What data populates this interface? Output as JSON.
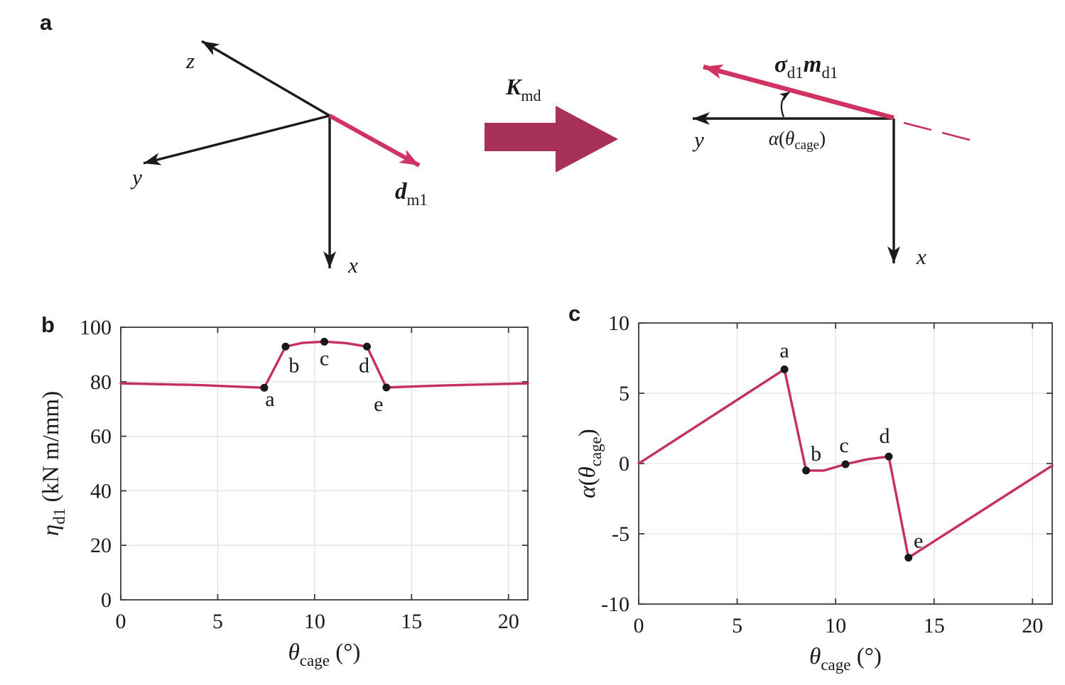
{
  "figure": {
    "panel_a_label": "a",
    "panel_b_label": "b",
    "panel_c_label": "c"
  },
  "diagram_left": {
    "axis_z": "z",
    "axis_y": "y",
    "axis_x": "x",
    "vector_main": "d",
    "vector_sub": "m1"
  },
  "transform_arrow": {
    "main": "K",
    "sub": "md"
  },
  "diagram_right": {
    "axis_y": "y",
    "axis_x": "x",
    "sigma": "σ",
    "sigma_sub": "d1",
    "m": "m",
    "m_sub": "d1",
    "alpha": "α",
    "alpha_open": "(",
    "theta": "θ",
    "theta_sub": "cage",
    "alpha_close": ")"
  },
  "colors": {
    "accent_line": "#C43060",
    "vector_arrow": "#CE3362",
    "block_arrow": "#A73157",
    "axis_black": "#1A1A1A",
    "spine": "#3C3C3C",
    "grid": "#E2E2E2",
    "text": "#1A1A1A"
  },
  "chart_data": [
    {
      "id": "b",
      "type": "line",
      "title": "",
      "xlabel_parts": [
        {
          "t": "θ",
          "italic": true
        },
        {
          "t": "cage",
          "sub": true
        },
        {
          "t": " (°)"
        }
      ],
      "ylabel_parts": [
        {
          "t": "η",
          "italic": true
        },
        {
          "t": "d1",
          "sub": true
        },
        {
          "t": " (kN m/mm)"
        }
      ],
      "xlim": [
        0,
        21
      ],
      "ylim": [
        0,
        100
      ],
      "xticks": [
        0,
        5,
        10,
        15,
        20
      ],
      "yticks": [
        0,
        20,
        40,
        60,
        80,
        100
      ],
      "grid": true,
      "legend": "none",
      "line_color": "#C43060",
      "series": [
        {
          "name": "eta_d1",
          "x": [
            0,
            2,
            4,
            6,
            7.4,
            8.5,
            9.4,
            10.5,
            11.6,
            12.7,
            13.7,
            16,
            18,
            21
          ],
          "y": [
            79.4,
            79.1,
            78.8,
            78.2,
            77.8,
            92.9,
            94.3,
            94.7,
            94.2,
            92.9,
            77.9,
            78.5,
            78.9,
            79.4
          ]
        }
      ],
      "labeled_points": [
        {
          "label": "a",
          "x": 7.4,
          "y": 77.8,
          "label_offset": [
            8,
            26
          ]
        },
        {
          "label": "b",
          "x": 8.5,
          "y": 92.9,
          "label_offset": [
            12,
            36
          ]
        },
        {
          "label": "c",
          "x": 10.5,
          "y": 94.7,
          "label_offset": [
            0,
            33
          ]
        },
        {
          "label": "d",
          "x": 12.7,
          "y": 92.9,
          "label_offset": [
            -4,
            36
          ]
        },
        {
          "label": "e",
          "x": 13.7,
          "y": 77.9,
          "label_offset": [
            -11,
            33
          ]
        }
      ]
    },
    {
      "id": "c",
      "type": "line",
      "title": "",
      "xlabel_parts": [
        {
          "t": "θ",
          "italic": true
        },
        {
          "t": "cage",
          "sub": true
        },
        {
          "t": " (°)"
        }
      ],
      "ylabel_parts": [
        {
          "t": "α",
          "italic": true
        },
        {
          "t": "("
        },
        {
          "t": "θ",
          "italic": true
        },
        {
          "t": "cage",
          "sub": true
        },
        {
          "t": ")"
        }
      ],
      "xlim": [
        0,
        21
      ],
      "ylim": [
        -10,
        10
      ],
      "xticks": [
        0,
        5,
        10,
        15,
        20
      ],
      "yticks": [
        -10,
        -5,
        0,
        5,
        10
      ],
      "grid": true,
      "legend": "none",
      "line_color": "#C43060",
      "series": [
        {
          "name": "alpha",
          "x": [
            0,
            7.4,
            8.5,
            9.4,
            10.5,
            11.6,
            12.7,
            13.7,
            21
          ],
          "y": [
            0,
            6.7,
            -0.5,
            -0.5,
            -0.05,
            0.3,
            0.5,
            -6.7,
            -0.15
          ]
        }
      ],
      "labeled_points": [
        {
          "label": "a",
          "x": 7.4,
          "y": 6.7,
          "label_offset": [
            0,
            -17
          ]
        },
        {
          "label": "b",
          "x": 8.5,
          "y": -0.5,
          "label_offset": [
            14,
            -14
          ]
        },
        {
          "label": "c",
          "x": 10.5,
          "y": -0.05,
          "label_offset": [
            -2,
            -17
          ]
        },
        {
          "label": "d",
          "x": 12.7,
          "y": 0.5,
          "label_offset": [
            -6,
            -19
          ]
        },
        {
          "label": "e",
          "x": 13.7,
          "y": -6.7,
          "label_offset": [
            14,
            -14
          ]
        }
      ]
    }
  ]
}
